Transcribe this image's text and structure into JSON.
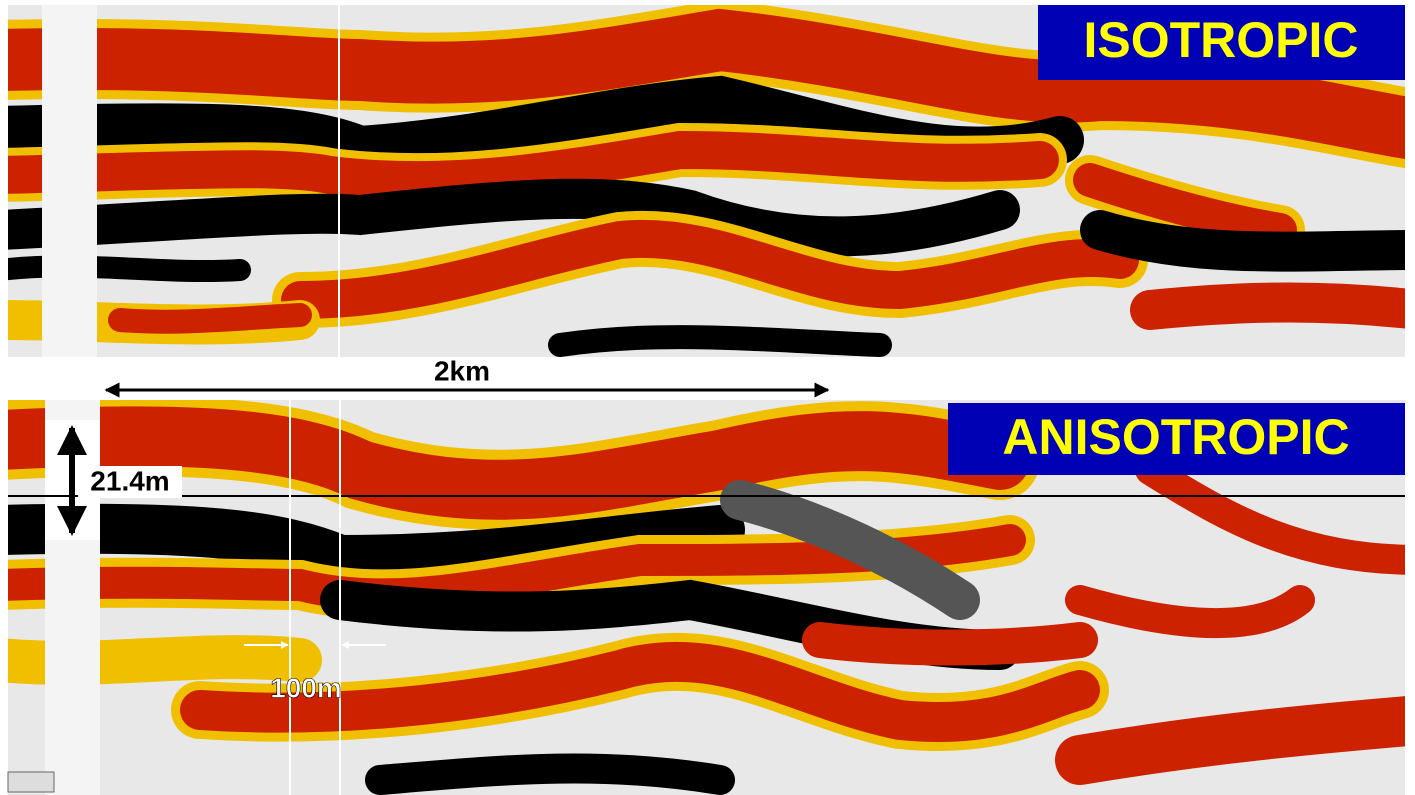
{
  "panels": {
    "top": {
      "label": "ISOTROPIC"
    },
    "bottom": {
      "label": "ANISOTROPIC"
    }
  },
  "measurements": {
    "horizontal": "2km",
    "vertical": "21.4m",
    "gap": "100m"
  }
}
